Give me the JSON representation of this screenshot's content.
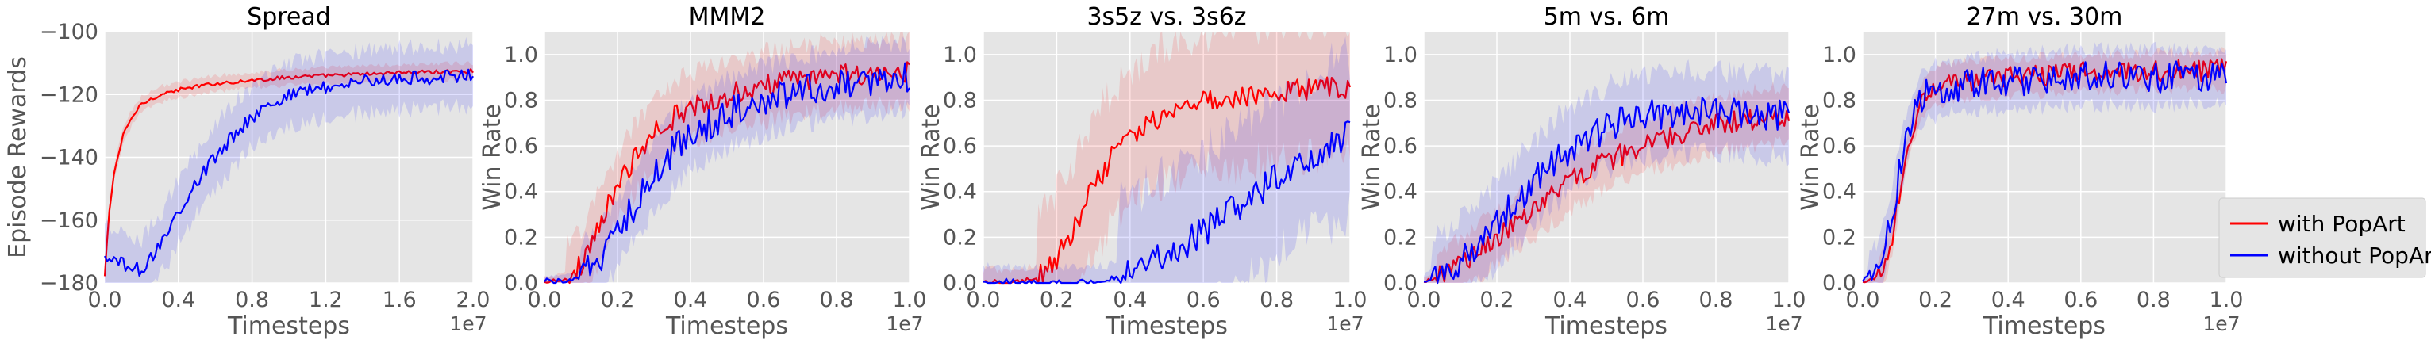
{
  "colors": {
    "with": "#ff0000",
    "without": "#0000ff",
    "panel_bg": "#e5e5e5",
    "grid": "#ffffff",
    "legend_bg": "#e5e5e5"
  },
  "legend": {
    "placement": "right-outside",
    "entries": [
      "with PopArt",
      "without PopArt"
    ]
  },
  "chart_data": [
    {
      "type": "line",
      "title": "Spread",
      "xlabel": "Timesteps",
      "ylabel": "Episode Rewards",
      "x_exponent": "1e7",
      "xlim": [
        0,
        2.0
      ],
      "ylim": [
        -180,
        -100
      ],
      "xticks": [
        "0.0",
        "0.4",
        "0.8",
        "1.2",
        "1.6",
        "2.0"
      ],
      "yticks": [
        "−180",
        "−160",
        "−140",
        "−120",
        "−100"
      ],
      "grid": true,
      "series": [
        {
          "name": "with PopArt",
          "color": "#ff0000",
          "x": [
            0,
            0.02,
            0.05,
            0.1,
            0.15,
            0.2,
            0.3,
            0.4,
            0.5,
            0.6,
            0.8,
            1.0,
            1.2,
            1.4,
            1.6,
            1.8,
            2.0
          ],
          "y": [
            -178,
            -160,
            -145,
            -133,
            -127,
            -123,
            -120,
            -118.5,
            -117.5,
            -116.5,
            -115.5,
            -114.5,
            -114,
            -113.5,
            -113,
            -112.8,
            -112.5
          ],
          "band": 2.5
        },
        {
          "name": "without PopArt",
          "color": "#0000ff",
          "x": [
            0,
            0.05,
            0.1,
            0.15,
            0.2,
            0.25,
            0.3,
            0.35,
            0.4,
            0.5,
            0.6,
            0.7,
            0.8,
            0.9,
            1.0,
            1.2,
            1.4,
            1.6,
            1.8,
            2.0
          ],
          "y": [
            -172,
            -173,
            -174,
            -175,
            -176,
            -172,
            -168,
            -163,
            -157,
            -148,
            -140,
            -133,
            -127,
            -123,
            -120,
            -117.5,
            -116,
            -115,
            -114.5,
            -114
          ],
          "band": 10
        }
      ]
    },
    {
      "type": "line",
      "title": "MMM2",
      "xlabel": "Timesteps",
      "ylabel": "Win Rate",
      "x_exponent": "1e7",
      "xlim": [
        0,
        1.0
      ],
      "ylim": [
        0,
        1.1
      ],
      "xticks": [
        "0.0",
        "0.2",
        "0.4",
        "0.6",
        "0.8",
        "1.0"
      ],
      "yticks": [
        "0.0",
        "0.2",
        "0.4",
        "0.6",
        "0.8",
        "1.0"
      ],
      "grid": true,
      "series": [
        {
          "name": "with PopArt",
          "color": "#ff0000",
          "x": [
            0,
            0.05,
            0.1,
            0.15,
            0.2,
            0.25,
            0.3,
            0.35,
            0.4,
            0.5,
            0.6,
            0.7,
            0.8,
            0.9,
            1.0
          ],
          "y": [
            0,
            0.01,
            0.08,
            0.25,
            0.42,
            0.55,
            0.65,
            0.72,
            0.77,
            0.82,
            0.86,
            0.89,
            0.91,
            0.92,
            0.93
          ],
          "band": 0.15
        },
        {
          "name": "without PopArt",
          "color": "#0000ff",
          "x": [
            0,
            0.05,
            0.1,
            0.15,
            0.2,
            0.25,
            0.3,
            0.35,
            0.4,
            0.5,
            0.6,
            0.7,
            0.8,
            0.9,
            1.0
          ],
          "y": [
            0,
            0.0,
            0.02,
            0.1,
            0.22,
            0.35,
            0.47,
            0.57,
            0.65,
            0.74,
            0.8,
            0.84,
            0.87,
            0.89,
            0.9
          ],
          "band": 0.15
        }
      ]
    },
    {
      "type": "line",
      "title": "3s5z vs. 3s6z",
      "xlabel": "Timesteps",
      "ylabel": "Win Rate",
      "x_exponent": "1e7",
      "xlim": [
        0,
        1.0
      ],
      "ylim": [
        0,
        1.1
      ],
      "xticks": [
        "0.0",
        "0.2",
        "0.4",
        "0.6",
        "0.8",
        "1.0"
      ],
      "yticks": [
        "0.0",
        "0.2",
        "0.4",
        "0.6",
        "0.8",
        "1.0"
      ],
      "grid": true,
      "series": [
        {
          "name": "with PopArt",
          "color": "#ff0000",
          "x": [
            0,
            0.1,
            0.15,
            0.2,
            0.25,
            0.3,
            0.35,
            0.4,
            0.45,
            0.5,
            0.6,
            0.7,
            0.8,
            0.9,
            1.0
          ],
          "y": [
            0,
            0,
            0.02,
            0.1,
            0.25,
            0.42,
            0.55,
            0.64,
            0.7,
            0.74,
            0.79,
            0.82,
            0.84,
            0.85,
            0.86
          ],
          "band": 0.3
        },
        {
          "name": "without PopArt",
          "color": "#0000ff",
          "x": [
            0,
            0.2,
            0.3,
            0.35,
            0.4,
            0.45,
            0.5,
            0.55,
            0.6,
            0.65,
            0.7,
            0.75,
            0.8,
            0.85,
            0.9,
            0.95,
            1.0
          ],
          "y": [
            0,
            0,
            0,
            0.01,
            0.04,
            0.08,
            0.12,
            0.17,
            0.22,
            0.28,
            0.34,
            0.4,
            0.46,
            0.52,
            0.57,
            0.61,
            0.65
          ],
          "band": 0.35
        }
      ]
    },
    {
      "type": "line",
      "title": "5m vs. 6m",
      "xlabel": "Timesteps",
      "ylabel": "Win Rate",
      "x_exponent": "1e7",
      "xlim": [
        0,
        1.0
      ],
      "ylim": [
        0,
        1.1
      ],
      "xticks": [
        "0.0",
        "0.2",
        "0.4",
        "0.6",
        "0.8",
        "1.0"
      ],
      "yticks": [
        "0.0",
        "0.2",
        "0.4",
        "0.6",
        "0.8",
        "1.0"
      ],
      "grid": true,
      "series": [
        {
          "name": "with PopArt",
          "color": "#ff0000",
          "x": [
            0,
            0.05,
            0.1,
            0.15,
            0.2,
            0.25,
            0.3,
            0.35,
            0.4,
            0.45,
            0.5,
            0.55,
            0.6,
            0.7,
            0.8,
            0.9,
            1.0
          ],
          "y": [
            0,
            0.03,
            0.08,
            0.14,
            0.2,
            0.26,
            0.32,
            0.38,
            0.44,
            0.49,
            0.53,
            0.57,
            0.6,
            0.65,
            0.69,
            0.72,
            0.74
          ],
          "band": 0.12
        },
        {
          "name": "without PopArt",
          "color": "#0000ff",
          "x": [
            0,
            0.05,
            0.1,
            0.15,
            0.2,
            0.25,
            0.3,
            0.35,
            0.4,
            0.45,
            0.5,
            0.55,
            0.6,
            0.7,
            0.8,
            0.9,
            1.0
          ],
          "y": [
            0,
            0.04,
            0.1,
            0.18,
            0.26,
            0.35,
            0.44,
            0.52,
            0.59,
            0.64,
            0.68,
            0.71,
            0.73,
            0.75,
            0.75,
            0.74,
            0.73
          ],
          "band": 0.18
        }
      ]
    },
    {
      "type": "line",
      "title": "27m vs. 30m",
      "xlabel": "Timesteps",
      "ylabel": "Win Rate",
      "x_exponent": "1e7",
      "xlim": [
        0,
        1.0
      ],
      "ylim": [
        0,
        1.1
      ],
      "xticks": [
        "0.0",
        "0.2",
        "0.4",
        "0.6",
        "0.8",
        "1.0"
      ],
      "yticks": [
        "0.0",
        "0.2",
        "0.4",
        "0.6",
        "0.8",
        "1.0"
      ],
      "grid": true,
      "series": [
        {
          "name": "with PopArt",
          "color": "#ff0000",
          "x": [
            0,
            0.04,
            0.06,
            0.08,
            0.1,
            0.12,
            0.14,
            0.16,
            0.18,
            0.2,
            0.25,
            0.3,
            0.4,
            0.5,
            0.6,
            0.7,
            0.8,
            0.9,
            1.0
          ],
          "y": [
            0,
            0.02,
            0.08,
            0.2,
            0.38,
            0.56,
            0.7,
            0.79,
            0.84,
            0.86,
            0.88,
            0.89,
            0.9,
            0.91,
            0.92,
            0.92,
            0.93,
            0.93,
            0.93
          ],
          "band": 0.08
        },
        {
          "name": "without PopArt",
          "color": "#0000ff",
          "x": [
            0,
            0.04,
            0.06,
            0.08,
            0.1,
            0.12,
            0.14,
            0.16,
            0.18,
            0.2,
            0.25,
            0.3,
            0.4,
            0.5,
            0.6,
            0.7,
            0.8,
            0.9,
            1.0
          ],
          "y": [
            0,
            0.05,
            0.15,
            0.3,
            0.48,
            0.63,
            0.74,
            0.8,
            0.83,
            0.84,
            0.86,
            0.87,
            0.88,
            0.89,
            0.9,
            0.9,
            0.9,
            0.9,
            0.9
          ],
          "band": 0.12
        }
      ]
    }
  ]
}
